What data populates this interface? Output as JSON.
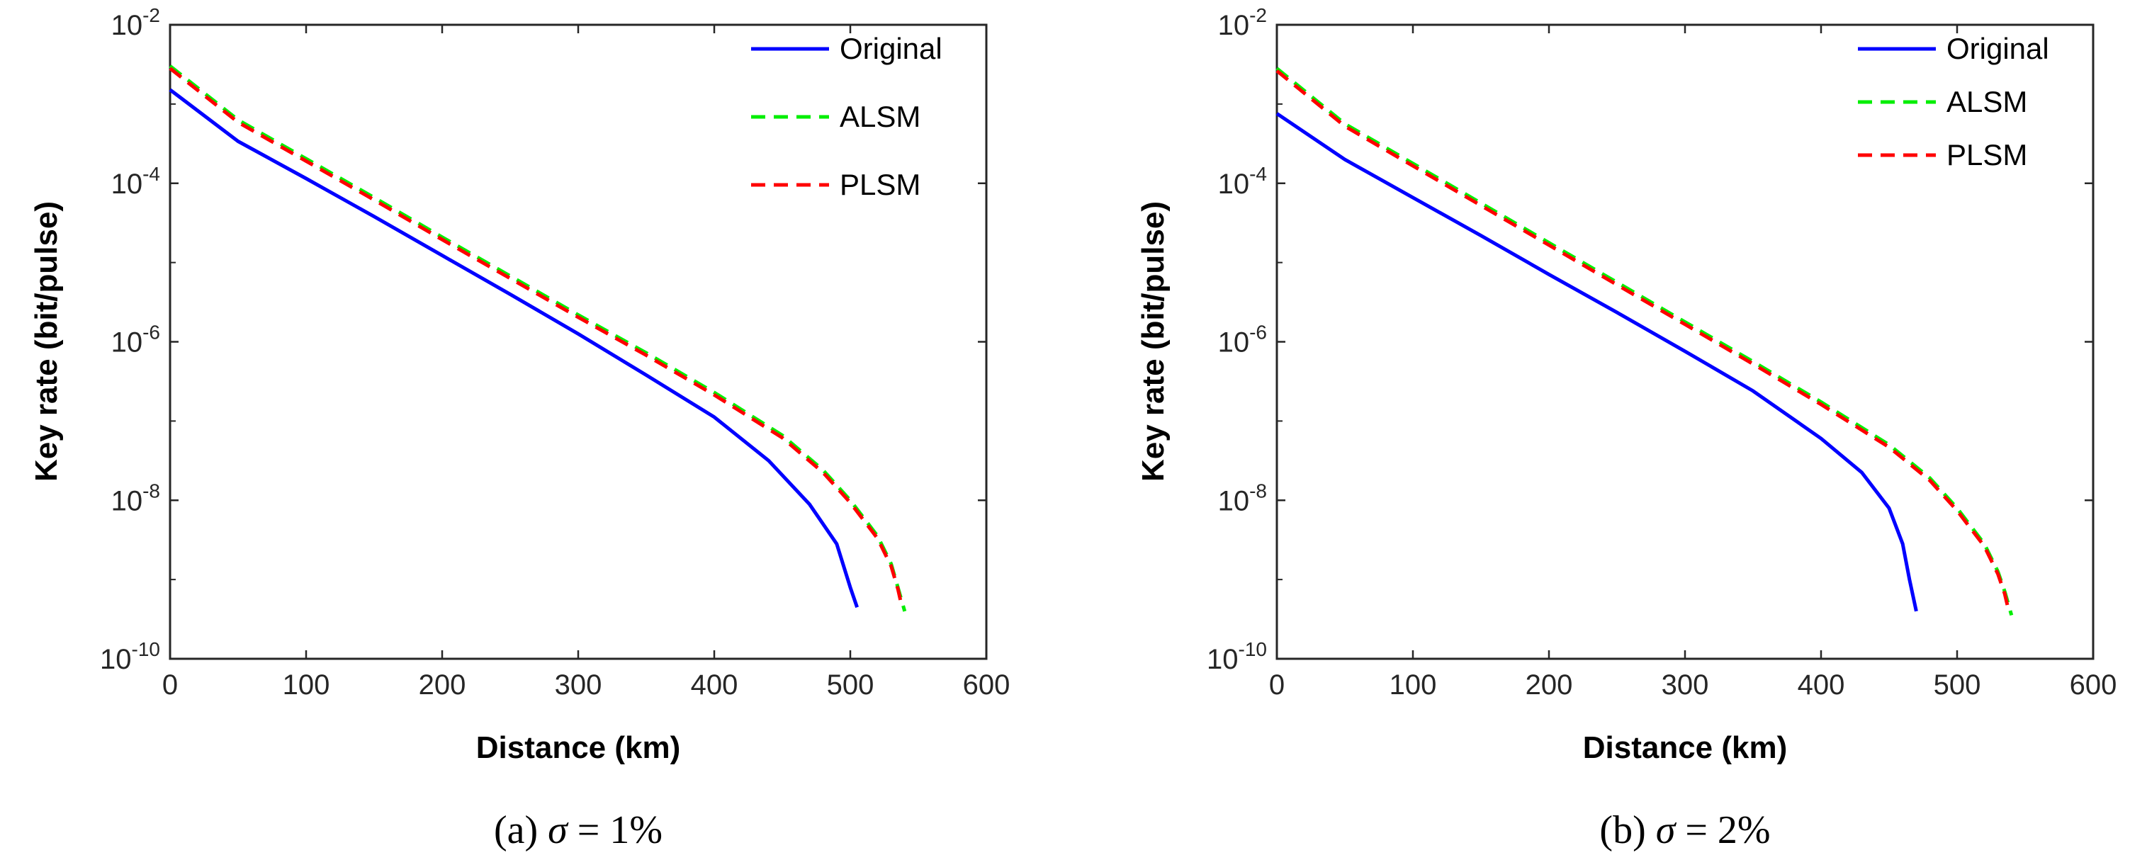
{
  "chart_data": [
    {
      "type": "line",
      "id": "a",
      "caption_prefix": "(a)",
      "caption_symbol": "σ",
      "caption_rest": " = 1%",
      "xlabel": "Distance (km)",
      "ylabel": "Key rate (bit/pulse)",
      "yscale": "log",
      "xlim": [
        0,
        600
      ],
      "ylim_exponents": [
        -10,
        -2
      ],
      "x_ticks": [
        "0",
        "100",
        "200",
        "300",
        "400",
        "500",
        "600"
      ],
      "x_tick_values": [
        0,
        100,
        200,
        300,
        400,
        500,
        600
      ],
      "y_tick_exponents": [
        -2,
        -4,
        -6,
        -8,
        -10
      ],
      "y_tick_base": "10",
      "y_tick_exp_labels": [
        "-2",
        "-4",
        "-6",
        "-8",
        "-10"
      ],
      "legend_position": "top-right",
      "series": [
        {
          "name": "Original",
          "color": "#0000ff",
          "style": "solid",
          "x": [
            0,
            50,
            100,
            150,
            200,
            250,
            300,
            350,
            400,
            440,
            470,
            490,
            500,
            505
          ],
          "log10y": [
            -2.82,
            -3.47,
            -3.94,
            -4.42,
            -4.91,
            -5.4,
            -5.9,
            -6.42,
            -6.95,
            -7.5,
            -8.05,
            -8.55,
            -9.1,
            -9.35
          ]
        },
        {
          "name": "ALSM",
          "color": "#00ee00",
          "style": "dashed",
          "x": [
            0,
            50,
            100,
            150,
            200,
            250,
            300,
            350,
            400,
            450,
            480,
            500,
            520,
            530,
            535,
            540
          ],
          "log10y": [
            -2.52,
            -3.2,
            -3.69,
            -4.18,
            -4.68,
            -5.17,
            -5.66,
            -6.14,
            -6.64,
            -7.18,
            -7.62,
            -8.0,
            -8.45,
            -8.8,
            -9.1,
            -9.4
          ]
        },
        {
          "name": "PLSM",
          "color": "#ff0000",
          "style": "dashed",
          "x": [
            0,
            50,
            100,
            150,
            200,
            250,
            300,
            350,
            400,
            450,
            480,
            500,
            520,
            530,
            535,
            538
          ],
          "log10y": [
            -2.55,
            -3.23,
            -3.72,
            -4.21,
            -4.71,
            -5.2,
            -5.69,
            -6.17,
            -6.67,
            -7.21,
            -7.65,
            -8.03,
            -8.48,
            -8.83,
            -9.12,
            -9.35
          ]
        }
      ]
    },
    {
      "type": "line",
      "id": "b",
      "caption_prefix": "(b)",
      "caption_symbol": "σ",
      "caption_rest": " = 2%",
      "xlabel": "Distance (km)",
      "ylabel": "Key rate (bit/pulse)",
      "yscale": "log",
      "xlim": [
        0,
        600
      ],
      "ylim_exponents": [
        -10,
        -2
      ],
      "x_ticks": [
        "0",
        "100",
        "200",
        "300",
        "400",
        "500",
        "600"
      ],
      "x_tick_values": [
        0,
        100,
        200,
        300,
        400,
        500,
        600
      ],
      "y_tick_exponents": [
        -2,
        -4,
        -6,
        -8,
        -10
      ],
      "y_tick_base": "10",
      "y_tick_exp_labels": [
        "-2",
        "-4",
        "-6",
        "-8",
        "-10"
      ],
      "legend_position": "top-right",
      "series": [
        {
          "name": "Original",
          "color": "#0000ff",
          "style": "solid",
          "x": [
            0,
            50,
            100,
            150,
            200,
            250,
            300,
            350,
            400,
            430,
            450,
            460,
            465,
            470
          ],
          "log10y": [
            -3.12,
            -3.7,
            -4.18,
            -4.66,
            -5.15,
            -5.63,
            -6.12,
            -6.62,
            -7.22,
            -7.65,
            -8.1,
            -8.55,
            -9.0,
            -9.4
          ]
        },
        {
          "name": "ALSM",
          "color": "#00ee00",
          "style": "dashed",
          "x": [
            0,
            50,
            100,
            150,
            200,
            250,
            300,
            350,
            400,
            450,
            480,
            500,
            520,
            530,
            535,
            540
          ],
          "log10y": [
            -2.55,
            -3.25,
            -3.75,
            -4.25,
            -4.75,
            -5.25,
            -5.75,
            -6.25,
            -6.76,
            -7.3,
            -7.72,
            -8.1,
            -8.55,
            -8.9,
            -9.15,
            -9.45
          ]
        },
        {
          "name": "PLSM",
          "color": "#ff0000",
          "style": "dashed",
          "x": [
            0,
            50,
            100,
            150,
            200,
            250,
            300,
            350,
            400,
            450,
            480,
            500,
            520,
            530,
            535,
            538
          ],
          "log10y": [
            -2.58,
            -3.28,
            -3.78,
            -4.28,
            -4.78,
            -5.28,
            -5.78,
            -6.28,
            -6.79,
            -7.33,
            -7.75,
            -8.13,
            -8.58,
            -8.93,
            -9.18,
            -9.4
          ]
        }
      ]
    }
  ]
}
